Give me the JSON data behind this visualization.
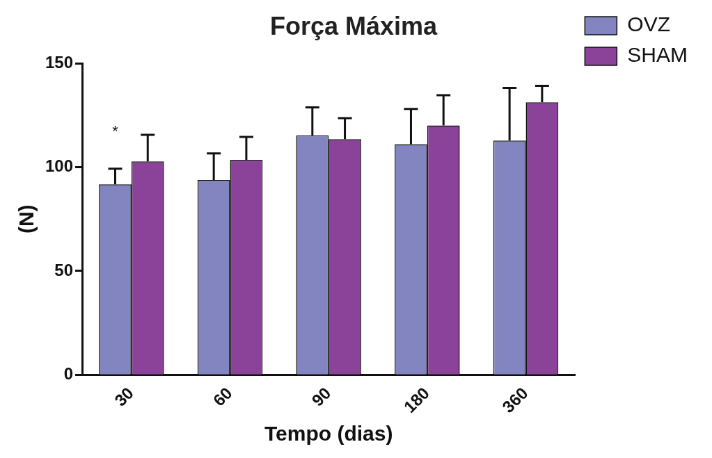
{
  "chart_data": {
    "type": "bar",
    "title": "Força Máxima",
    "xlabel": "Tempo (dias)",
    "ylabel": "(N)",
    "categories": [
      "30",
      "60",
      "90",
      "180",
      "360"
    ],
    "series": [
      {
        "name": "OVZ",
        "color": "#8385c1",
        "values": [
          91.7,
          93.8,
          115.3,
          111.1,
          112.8
        ],
        "errors": [
          [
            91.7,
            99.3
          ],
          [
            93.8,
            106.6
          ],
          [
            115.3,
            128.8
          ],
          [
            111.1,
            128.1
          ],
          [
            112.8,
            138.2
          ]
        ]
      },
      {
        "name": "SHAM",
        "color": "#8b4299",
        "values": [
          102.8,
          103.5,
          113.5,
          120.1,
          131.2
        ],
        "errors": [
          [
            102.8,
            115.6
          ],
          [
            103.5,
            114.6
          ],
          [
            113.5,
            123.6
          ],
          [
            120.1,
            134.7
          ],
          [
            131.2,
            139.2
          ]
        ]
      }
    ],
    "ylim": [
      0,
      150
    ],
    "yticks": [
      0,
      50,
      100,
      150
    ],
    "grid": false,
    "legend": "top right",
    "annotations": [
      "*"
    ]
  }
}
